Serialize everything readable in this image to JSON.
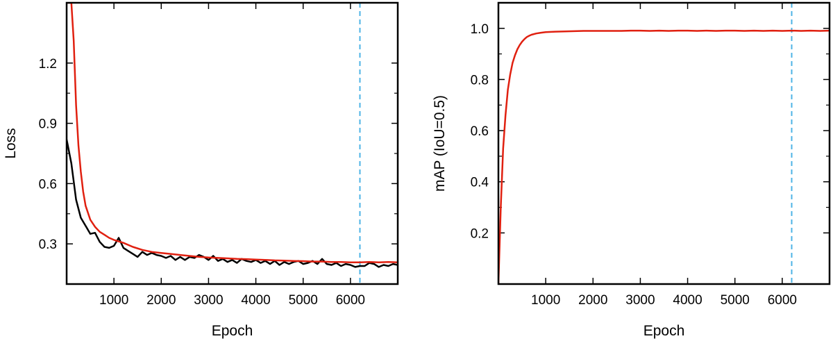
{
  "chart_data": [
    {
      "type": "line",
      "xlabel": "Epoch",
      "ylabel": "Loss",
      "xlim": [
        0,
        7000
      ],
      "ylim": [
        0.1,
        1.5
      ],
      "xticks": [
        1000,
        2000,
        3000,
        4000,
        5000,
        6000
      ],
      "yticks": [
        0.3,
        0.6,
        0.9,
        1.2
      ],
      "grid": false,
      "vline": {
        "x": 6200,
        "color": "#4db3e6",
        "style": "dashed"
      },
      "series": [
        {
          "color": "#000000",
          "x": [
            0,
            100,
            200,
            300,
            400,
            500,
            600,
            700,
            800,
            900,
            1000,
            1100,
            1200,
            1300,
            1400,
            1500,
            1600,
            1700,
            1800,
            1900,
            2000,
            2100,
            2200,
            2300,
            2400,
            2500,
            2600,
            2700,
            2800,
            2900,
            3000,
            3100,
            3200,
            3300,
            3400,
            3500,
            3600,
            3700,
            3800,
            3900,
            4000,
            4100,
            4200,
            4300,
            4400,
            4500,
            4600,
            4700,
            4800,
            4900,
            5000,
            5100,
            5200,
            5300,
            5400,
            5500,
            5600,
            5700,
            5800,
            5900,
            6000,
            6100,
            6200,
            6300,
            6400,
            6500,
            6600,
            6700,
            6800,
            6900,
            7000
          ],
          "y": [
            0.82,
            0.7,
            0.52,
            0.43,
            0.39,
            0.35,
            0.355,
            0.31,
            0.285,
            0.28,
            0.29,
            0.33,
            0.28,
            0.265,
            0.25,
            0.235,
            0.26,
            0.245,
            0.255,
            0.245,
            0.24,
            0.23,
            0.24,
            0.22,
            0.235,
            0.22,
            0.235,
            0.23,
            0.245,
            0.235,
            0.22,
            0.24,
            0.215,
            0.225,
            0.21,
            0.22,
            0.205,
            0.225,
            0.215,
            0.21,
            0.22,
            0.205,
            0.215,
            0.2,
            0.215,
            0.195,
            0.21,
            0.2,
            0.21,
            0.215,
            0.2,
            0.205,
            0.215,
            0.2,
            0.225,
            0.2,
            0.195,
            0.205,
            0.19,
            0.2,
            0.195,
            0.185,
            0.19,
            0.19,
            0.205,
            0.2,
            0.185,
            0.195,
            0.19,
            0.2,
            0.195
          ]
        },
        {
          "color": "#e02010",
          "x": [
            0,
            100,
            150,
            200,
            250,
            300,
            350,
            400,
            500,
            600,
            700,
            800,
            900,
            1000,
            1200,
            1400,
            1600,
            1800,
            2000,
            2200,
            2400,
            2600,
            2800,
            3000,
            3200,
            3400,
            3600,
            3800,
            4000,
            4200,
            4400,
            4600,
            4800,
            5000,
            5200,
            5400,
            5600,
            5800,
            6000,
            6200,
            6400,
            6600,
            6800,
            7000
          ],
          "y": [
            1.5,
            1.5,
            1.31,
            0.99,
            0.79,
            0.66,
            0.56,
            0.49,
            0.42,
            0.385,
            0.36,
            0.345,
            0.33,
            0.32,
            0.305,
            0.285,
            0.27,
            0.26,
            0.255,
            0.25,
            0.245,
            0.24,
            0.235,
            0.232,
            0.23,
            0.228,
            0.225,
            0.224,
            0.222,
            0.22,
            0.218,
            0.217,
            0.215,
            0.214,
            0.212,
            0.212,
            0.21,
            0.21,
            0.208,
            0.208,
            0.21,
            0.208,
            0.21,
            0.208
          ]
        }
      ]
    },
    {
      "type": "line",
      "xlabel": "Epoch",
      "ylabel": "mAP (IoU=0.5)",
      "xlim": [
        0,
        7000
      ],
      "ylim": [
        0,
        1.1
      ],
      "xticks": [
        1000,
        2000,
        3000,
        4000,
        5000,
        6000
      ],
      "yticks": [
        0.2,
        0.4,
        0.6,
        0.8,
        1.0
      ],
      "ytick_labels": [
        "0.2",
        "0.4",
        "0.6",
        "0.8",
        "1.0"
      ],
      "grid": false,
      "vline": {
        "x": 6200,
        "color": "#4db3e6",
        "style": "dashed"
      },
      "series": [
        {
          "color": "#e02010",
          "x": [
            0,
            50,
            100,
            150,
            200,
            250,
            300,
            350,
            400,
            450,
            500,
            550,
            600,
            650,
            700,
            800,
            900,
            1000,
            1200,
            1400,
            1600,
            1800,
            2000,
            2200,
            2400,
            2600,
            2800,
            3000,
            3200,
            3400,
            3600,
            3800,
            4000,
            4200,
            4400,
            4600,
            4800,
            5000,
            5200,
            5400,
            5600,
            5800,
            6000,
            6200,
            6400,
            6600,
            6800,
            7000
          ],
          "y": [
            0.0,
            0.3,
            0.53,
            0.66,
            0.76,
            0.82,
            0.865,
            0.895,
            0.918,
            0.935,
            0.948,
            0.958,
            0.966,
            0.971,
            0.975,
            0.98,
            0.983,
            0.985,
            0.987,
            0.988,
            0.989,
            0.99,
            0.99,
            0.99,
            0.99,
            0.99,
            0.991,
            0.991,
            0.99,
            0.991,
            0.99,
            0.991,
            0.991,
            0.99,
            0.991,
            0.99,
            0.991,
            0.991,
            0.99,
            0.991,
            0.99,
            0.991,
            0.99,
            0.991,
            0.99,
            0.991,
            0.99,
            0.991
          ]
        }
      ]
    }
  ]
}
